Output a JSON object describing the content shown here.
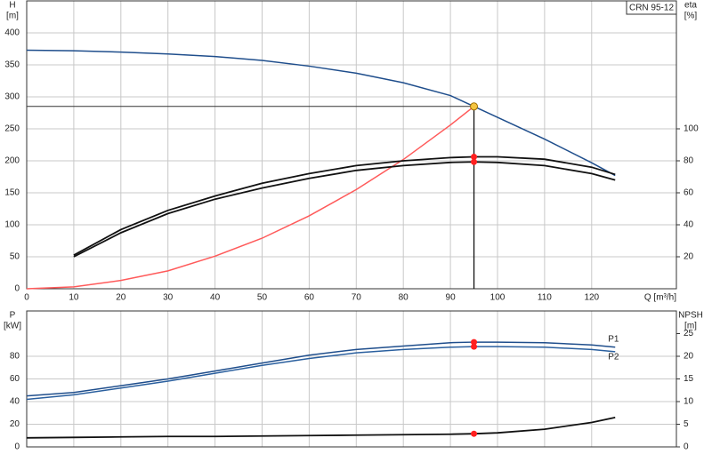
{
  "chart_data": [
    {
      "type": "line",
      "legend_box": "CRN 95-12",
      "y_label": [
        "H",
        "[m]"
      ],
      "y2_label": [
        "eta",
        "[%]"
      ],
      "x_label": "Q [m³/h]",
      "x": [
        0,
        10,
        20,
        30,
        40,
        50,
        60,
        70,
        80,
        90,
        95,
        100,
        110,
        120,
        125
      ],
      "xlim": [
        0,
        138
      ],
      "xticks": [
        0,
        10,
        20,
        30,
        40,
        50,
        60,
        70,
        80,
        90,
        100,
        110,
        120
      ],
      "ylim": [
        0,
        450
      ],
      "yticks": [
        0,
        50,
        100,
        150,
        200,
        250,
        300,
        350,
        400
      ],
      "y2lim": [
        0,
        180
      ],
      "y2ticks": [
        20,
        40,
        60,
        80,
        100
      ],
      "grid": true,
      "duty_point": {
        "x": 95,
        "y": 285,
        "color": "#f5c542"
      },
      "series": [
        {
          "color": "#1f4e8c",
          "values": [
            373,
            372,
            370,
            367,
            363,
            357,
            348,
            337,
            322,
            302,
            285,
            268,
            234,
            197,
            177
          ]
        },
        {
          "color": "#ff5a5a",
          "values": [
            0,
            3,
            13,
            28,
            51,
            79,
            114,
            155,
            202,
            256,
            285,
            null,
            null,
            null,
            null
          ]
        },
        {
          "color": "#111111",
          "axis": "y2",
          "point": true,
          "values": [
            null,
            21,
            37,
            49,
            58,
            66,
            72,
            77,
            80,
            82,
            82.5,
            82.5,
            81,
            76,
            71.5
          ]
        },
        {
          "color": "#111111",
          "axis": "y2",
          "point": true,
          "values": [
            null,
            20,
            35,
            47,
            56,
            63,
            69,
            74,
            77,
            79,
            79.3,
            79,
            77,
            72,
            68
          ]
        }
      ]
    },
    {
      "type": "line",
      "y_label": [
        "P",
        "[kW]"
      ],
      "y2_label": [
        "NPSH",
        "[m]"
      ],
      "x": [
        0,
        10,
        20,
        30,
        40,
        50,
        60,
        70,
        80,
        90,
        95,
        100,
        110,
        120,
        125
      ],
      "xlim": [
        0,
        138
      ],
      "ylim": [
        0,
        120
      ],
      "yticks": [
        0,
        20,
        40,
        60,
        80
      ],
      "y2lim": [
        0,
        30
      ],
      "y2ticks": [
        0,
        5,
        10,
        15,
        20,
        25
      ],
      "grid": true,
      "series": [
        {
          "name": "P1",
          "color": "#1f4e8c",
          "point": true,
          "values": [
            45,
            48,
            54,
            60,
            67,
            74,
            81,
            86,
            89,
            92,
            92.5,
            92.5,
            92,
            90,
            88
          ]
        },
        {
          "name": "P2",
          "color": "#2a5f9e",
          "point": true,
          "values": [
            42,
            46,
            52,
            58,
            65,
            72,
            78,
            83,
            86,
            88,
            88.5,
            88.5,
            88,
            86,
            84
          ]
        },
        {
          "color": "#111111",
          "axis": "y2",
          "point": true,
          "values": [
            2,
            2.1,
            2.2,
            2.3,
            2.3,
            2.4,
            2.5,
            2.6,
            2.7,
            2.8,
            2.9,
            3.1,
            3.9,
            5.4,
            6.5
          ]
        }
      ]
    }
  ]
}
